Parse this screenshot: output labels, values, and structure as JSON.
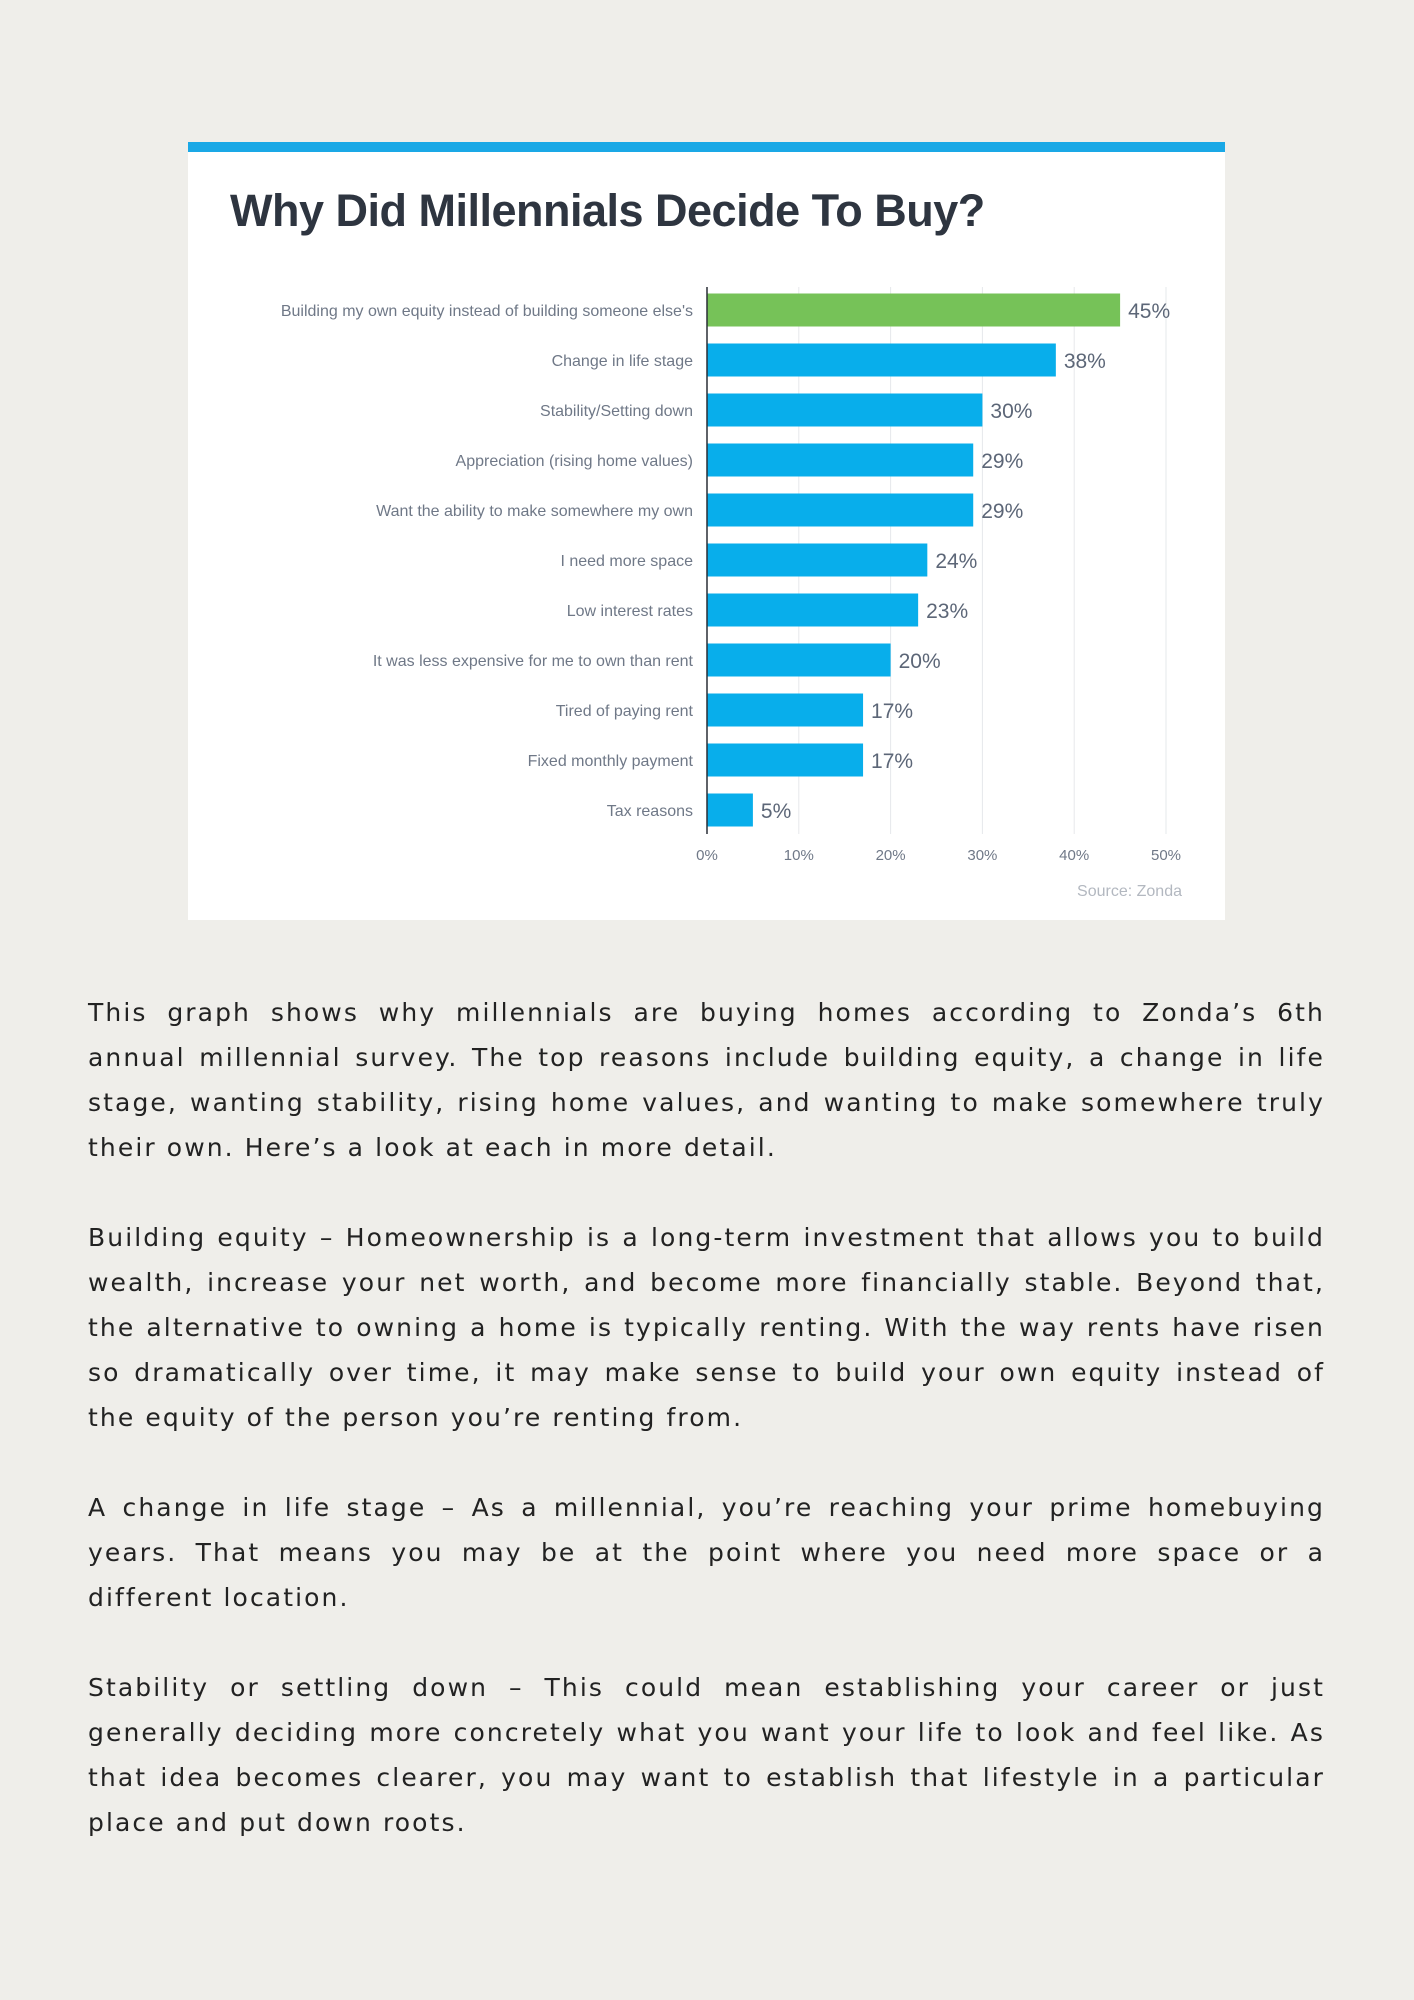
{
  "colors": {
    "page_background": "#efeeea",
    "top_bar": "#1aa8e6",
    "highlight_bar": "#76c258",
    "bar": "#08aeeb",
    "title": "#2e3540"
  },
  "chart_data": {
    "type": "bar",
    "orientation": "horizontal",
    "title": "Why Did Millennials Decide To Buy?",
    "categories": [
      "Building my own equity instead of building someone else's",
      "Change in life stage",
      "Stability/Setting down",
      "Appreciation (rising home values)",
      "Want the ability to make somewhere my own",
      "I need more space",
      "Low interest rates",
      "It was less expensive for me to own than rent",
      "Tired of paying rent",
      "Fixed monthly payment",
      "Tax reasons"
    ],
    "values": [
      45,
      38,
      30,
      29,
      29,
      24,
      23,
      20,
      17,
      17,
      5
    ],
    "value_labels": [
      "45%",
      "38%",
      "30%",
      "29%",
      "29%",
      "24%",
      "23%",
      "20%",
      "17%",
      "17%",
      "5%"
    ],
    "highlight_index": 0,
    "xlim": [
      0,
      50
    ],
    "xticks": [
      "0%",
      "10%",
      "20%",
      "30%",
      "40%",
      "50%"
    ],
    "xlabel": "",
    "ylabel": "",
    "grid": "vertical",
    "legend": "none",
    "source": "Source: Zonda"
  },
  "article": {
    "paragraphs": [
      "This graph shows why millennials are buying homes according to Zonda’s 6th annual millennial survey. The top reasons include building equity, a change in life stage, wanting stability, rising home values, and wanting to make somewhere truly their own. Here’s a look at each in more detail.",
      "Building equity – Homeownership is a long-term investment that allows you to build wealth, increase your net worth, and become more financially stable. Beyond that, the alternative to owning a home is typically renting. With the way rents have risen so dramatically over time, it may make sense to build your own equity instead of the equity of the person you’re renting from.",
      "A change in life stage – As a millennial, you’re reaching your prime homebuying years. That means you may be at the point where you need more space or a different location.",
      "Stability or settling down – This could mean establishing your career or just generally deciding more concretely what you want your life to look and feel like. As that idea becomes clearer, you may want to establish that lifestyle in a particular place and put down roots."
    ]
  }
}
